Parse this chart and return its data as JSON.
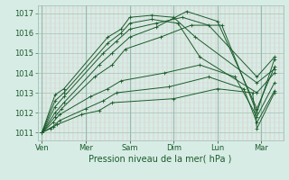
{
  "bg_color": "#d8ece6",
  "plot_bg": "#d8ece6",
  "line_color": "#1a5c2a",
  "ylim": [
    1010.6,
    1017.4
  ],
  "yticks": [
    1011,
    1012,
    1013,
    1014,
    1015,
    1016,
    1017
  ],
  "xlabel": "Pression niveau de la mer( hPa )",
  "xtick_labels": [
    "Ven",
    "Mer",
    "Sam",
    "Dim",
    "Lun",
    "Mar"
  ],
  "xtick_positions": [
    0,
    1,
    2,
    3,
    4,
    5
  ],
  "tick_fontsize": 6,
  "xlabel_fontsize": 7,
  "series": [
    [
      1011.0,
      1012.9,
      1013.2,
      1015.8,
      1016.2,
      1016.8,
      1016.9,
      1016.8,
      1015.8,
      1013.5,
      1014.2
    ],
    [
      1011.0,
      1012.6,
      1013.0,
      1015.5,
      1016.0,
      1016.5,
      1016.7,
      1016.5,
      1014.8,
      1013.0,
      1014.0
    ],
    [
      1011.0,
      1012.3,
      1012.8,
      1015.0,
      1015.6,
      1016.2,
      1016.5,
      1016.8,
      1016.4,
      1013.8,
      1014.8
    ],
    [
      1011.0,
      1012.0,
      1012.5,
      1014.4,
      1015.0,
      1015.8,
      1016.3,
      1017.1,
      1016.6,
      1012.2,
      1014.3
    ],
    [
      1011.0,
      1011.8,
      1012.2,
      1013.8,
      1014.4,
      1015.2,
      1015.8,
      1016.4,
      1016.4,
      1012.0,
      1014.7
    ],
    [
      1011.0,
      1011.5,
      1011.9,
      1012.8,
      1013.2,
      1013.6,
      1014.0,
      1014.4,
      1013.8,
      1011.8,
      1013.5
    ],
    [
      1011.0,
      1011.3,
      1011.6,
      1012.2,
      1012.6,
      1013.0,
      1013.3,
      1013.8,
      1013.2,
      1011.5,
      1013.1
    ],
    [
      1011.0,
      1011.2,
      1011.4,
      1011.9,
      1012.1,
      1012.5,
      1012.7,
      1013.2,
      1013.0,
      1011.2,
      1013.0
    ]
  ],
  "series_x": [
    [
      0.0,
      0.3,
      0.5,
      1.5,
      1.8,
      2.0,
      2.5,
      3.0,
      3.5,
      4.9,
      5.3
    ],
    [
      0.0,
      0.3,
      0.5,
      1.5,
      1.8,
      2.0,
      2.5,
      3.1,
      3.6,
      4.9,
      5.3
    ],
    [
      0.0,
      0.3,
      0.5,
      1.4,
      1.7,
      2.0,
      2.6,
      3.2,
      3.8,
      4.9,
      5.3
    ],
    [
      0.0,
      0.3,
      0.5,
      1.3,
      1.6,
      2.0,
      2.6,
      3.3,
      4.0,
      4.9,
      5.3
    ],
    [
      0.0,
      0.3,
      0.45,
      1.2,
      1.6,
      1.9,
      2.7,
      3.4,
      4.1,
      4.9,
      5.3
    ],
    [
      0.0,
      0.25,
      0.4,
      1.1,
      1.5,
      1.8,
      2.8,
      3.6,
      4.4,
      4.9,
      5.3
    ],
    [
      0.0,
      0.25,
      0.4,
      1.0,
      1.4,
      1.7,
      2.9,
      3.8,
      4.6,
      4.9,
      5.3
    ],
    [
      0.0,
      0.2,
      0.35,
      0.9,
      1.3,
      1.6,
      3.0,
      4.0,
      4.8,
      4.9,
      5.3
    ]
  ],
  "n_minor_vert": 55,
  "minor_vert_color": "#e8b8b8",
  "major_vert_color": "#9abcb0",
  "horiz_major_color": "#aacabc",
  "horiz_minor_color": "#c4dcd4"
}
